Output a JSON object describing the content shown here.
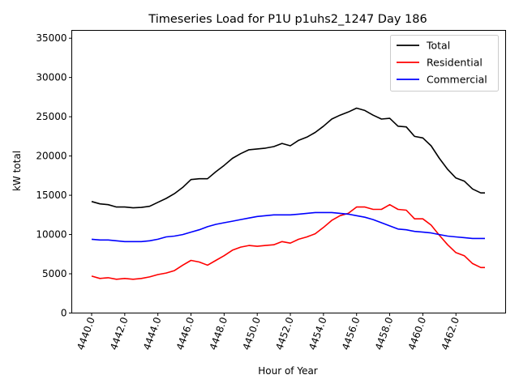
{
  "chart_data": {
    "type": "line",
    "title": "Timeseries Load for P1U p1uhs2_1247  Day 186",
    "xlabel": "Hour of Year",
    "ylabel": "kW total",
    "xlim": [
      4438.8,
      4465.0
    ],
    "ylim": [
      0,
      36000
    ],
    "xticks": [
      4440,
      4442,
      4444,
      4446,
      4448,
      4450,
      4452,
      4454,
      4456,
      4458,
      4460,
      4462
    ],
    "xtick_labels": [
      "4440.0",
      "4442.0",
      "4444.0",
      "4446.0",
      "4448.0",
      "4450.0",
      "4452.0",
      "4454.0",
      "4456.0",
      "4458.0",
      "4460.0",
      "4462.0"
    ],
    "yticks": [
      0,
      5000,
      10000,
      15000,
      20000,
      25000,
      30000,
      35000
    ],
    "ytick_labels": [
      "0",
      "5000",
      "10000",
      "15000",
      "20000",
      "25000",
      "30000",
      "35000"
    ],
    "grid": false,
    "legend_position": "top-right",
    "x": [
      4440,
      4440.5,
      4441,
      4441.5,
      4442,
      4442.5,
      4443,
      4443.5,
      4444,
      4444.5,
      4445,
      4445.5,
      4446,
      4446.5,
      4447,
      4447.5,
      4448,
      4448.5,
      4449,
      4449.5,
      4450,
      4450.5,
      4451,
      4451.5,
      4452,
      4452.5,
      4453,
      4453.5,
      4454,
      4454.5,
      4455,
      4455.5,
      4456,
      4456.5,
      4457,
      4457.5,
      4458,
      4458.5,
      4459,
      4459.5,
      4460,
      4460.5,
      4461,
      4461.5,
      4462,
      4462.5,
      4463,
      4463.5,
      4463.75
    ],
    "series": [
      {
        "name": "Total",
        "color": "#000000",
        "values": [
          14200,
          13900,
          13800,
          13500,
          13500,
          13400,
          13450,
          13600,
          14100,
          14600,
          15200,
          16000,
          17000,
          17100,
          17100,
          18000,
          18800,
          19700,
          20300,
          20800,
          20900,
          21000,
          21200,
          21600,
          21300,
          22000,
          22400,
          23000,
          23800,
          24700,
          25200,
          25600,
          26100,
          25800,
          25200,
          24700,
          24800,
          23800,
          23700,
          22500,
          22300,
          21300,
          19700,
          18300,
          17200,
          16800,
          15800,
          15300,
          15300
        ]
      },
      {
        "name": "Residential",
        "color": "#ff0000",
        "values": [
          4700,
          4400,
          4500,
          4300,
          4400,
          4300,
          4400,
          4600,
          4900,
          5100,
          5400,
          6100,
          6700,
          6500,
          6100,
          6700,
          7300,
          8000,
          8400,
          8600,
          8500,
          8600,
          8700,
          9100,
          8900,
          9400,
          9700,
          10100,
          10900,
          11800,
          12400,
          12700,
          13500,
          13500,
          13200,
          13200,
          13800,
          13200,
          13100,
          12000,
          12000,
          11200,
          9900,
          8700,
          7700,
          7300,
          6300,
          5800,
          5800
        ]
      },
      {
        "name": "Commercial",
        "color": "#0000ff",
        "values": [
          9400,
          9300,
          9300,
          9200,
          9100,
          9100,
          9100,
          9200,
          9400,
          9700,
          9800,
          10000,
          10300,
          10600,
          11000,
          11300,
          11500,
          11700,
          11900,
          12100,
          12300,
          12400,
          12500,
          12500,
          12500,
          12600,
          12700,
          12800,
          12800,
          12800,
          12700,
          12600,
          12400,
          12200,
          11900,
          11500,
          11100,
          10700,
          10600,
          10400,
          10300,
          10200,
          10000,
          9800,
          9700,
          9600,
          9500,
          9500,
          9500
        ]
      }
    ]
  }
}
